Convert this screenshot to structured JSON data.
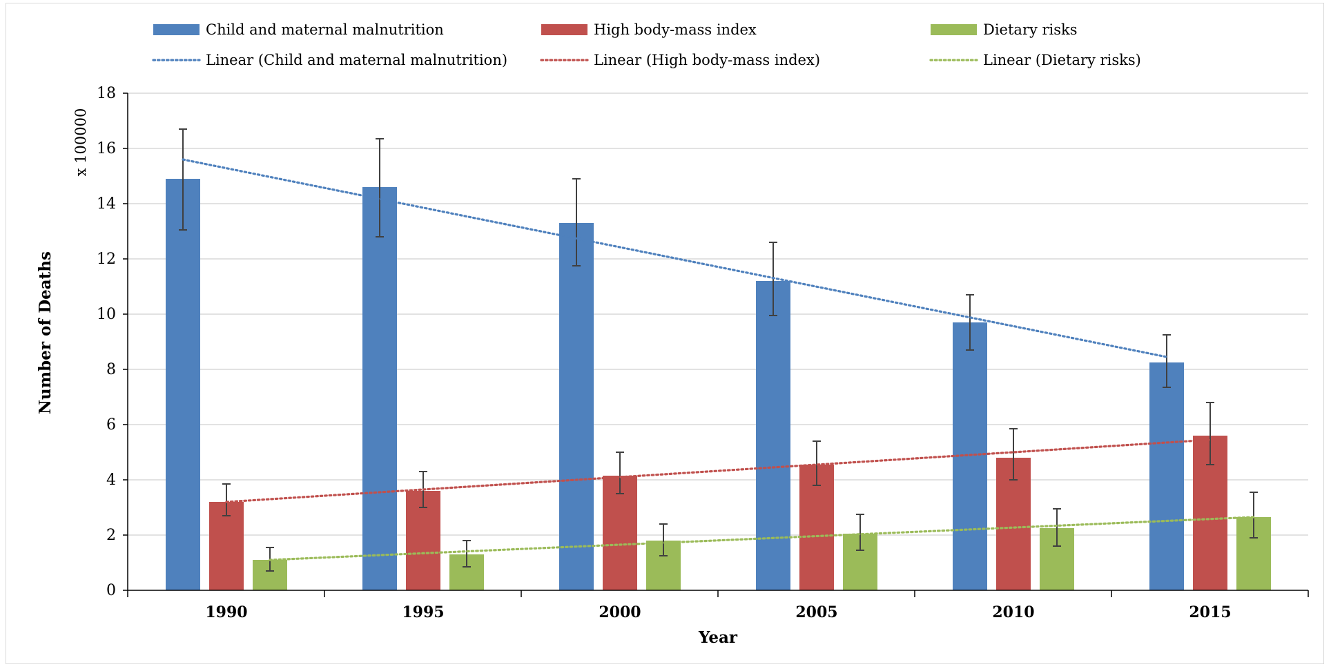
{
  "chart_data": {
    "type": "bar",
    "title": "",
    "xlabel": "Year",
    "ylabel": "Number of Deaths",
    "y_unit": "x 100000",
    "ylim": [
      0,
      18
    ],
    "yticks": [
      "0",
      "2",
      "4",
      "6",
      "8",
      "10",
      "12",
      "14",
      "16",
      "18"
    ],
    "grid": true,
    "legend_position": "top",
    "categories": [
      "1990",
      "1995",
      "2000",
      "2005",
      "2010",
      "2015"
    ],
    "series": [
      {
        "name": "Child and maternal malnutrition",
        "color": "#4f81bd",
        "values": [
          14.9,
          14.6,
          13.3,
          11.2,
          9.7,
          8.25
        ],
        "error_low": [
          13.05,
          12.8,
          11.75,
          9.95,
          8.7,
          7.35
        ],
        "error_high": [
          16.7,
          16.35,
          14.9,
          12.6,
          10.7,
          9.25
        ]
      },
      {
        "name": "High body-mass index",
        "color": "#c0504d",
        "values": [
          3.2,
          3.6,
          4.15,
          4.55,
          4.8,
          5.6
        ],
        "error_low": [
          2.7,
          3.0,
          3.5,
          3.8,
          4.0,
          4.55
        ],
        "error_high": [
          3.85,
          4.3,
          5.0,
          5.4,
          5.85,
          6.8
        ]
      },
      {
        "name": "Dietary risks",
        "color": "#9bbb59",
        "values": [
          1.1,
          1.3,
          1.8,
          2.05,
          2.25,
          2.65
        ],
        "error_low": [
          0.7,
          0.85,
          1.25,
          1.45,
          1.6,
          1.9
        ],
        "error_high": [
          1.55,
          1.8,
          2.4,
          2.75,
          2.95,
          3.55
        ]
      }
    ],
    "trendlines": [
      {
        "name": "Linear (Child and maternal malnutrition)",
        "color": "#4f81bd",
        "start": 15.6,
        "end": 8.45
      },
      {
        "name": "Linear (High body-mass index)",
        "color": "#c0504d",
        "start": 3.2,
        "end": 5.45
      },
      {
        "name": "Linear (Dietary risks)",
        "color": "#9bbb59",
        "start": 1.1,
        "end": 2.65
      }
    ]
  }
}
